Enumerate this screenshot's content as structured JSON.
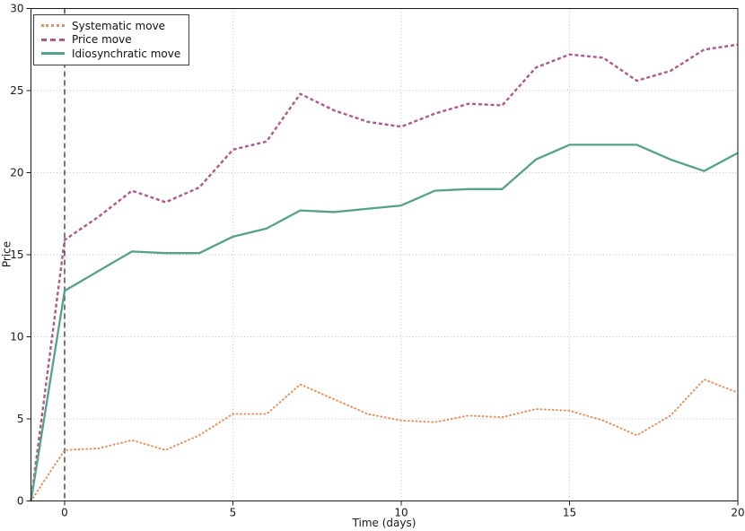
{
  "figure": {
    "background": "#ffffff"
  },
  "axes": {
    "spine_color": "#1a1a1a",
    "grid_color": "#bdbdbd"
  },
  "legend": {
    "position": "upper-left",
    "border_color": "#3c3c3c"
  },
  "chart_data": {
    "type": "line",
    "title": "",
    "xlabel": "Time (days)",
    "ylabel": "Price",
    "xlim": [
      -1,
      20
    ],
    "ylim": [
      0,
      30
    ],
    "xticks": [
      0,
      5,
      10,
      15,
      20
    ],
    "yticks": [
      0,
      5,
      10,
      15,
      20,
      25,
      30
    ],
    "grid": true,
    "legend_position": "upper left",
    "x": [
      -1,
      0,
      1,
      2,
      3,
      4,
      5,
      6,
      7,
      8,
      9,
      10,
      11,
      12,
      13,
      14,
      15,
      16,
      17,
      18,
      19,
      20
    ],
    "series": [
      {
        "name": "Systematic move",
        "color": "#e2925e",
        "line_style": "dotted",
        "values": [
          0,
          3.1,
          3.2,
          3.7,
          3.1,
          4.0,
          5.3,
          5.3,
          7.1,
          6.2,
          5.3,
          4.9,
          4.8,
          5.2,
          5.1,
          5.6,
          5.5,
          4.9,
          4.0,
          5.2,
          7.4,
          6.6
        ]
      },
      {
        "name": "Price move",
        "color": "#ac5a8b",
        "line_style": "dashed",
        "values": [
          0,
          15.9,
          17.3,
          18.9,
          18.2,
          19.1,
          21.4,
          21.9,
          24.8,
          23.8,
          23.1,
          22.8,
          23.6,
          24.2,
          24.1,
          26.4,
          27.2,
          27.0,
          25.6,
          26.2,
          27.5,
          27.8
        ]
      },
      {
        "name": "Idiosynchratic move",
        "color": "#55a28b",
        "line_style": "solid",
        "values": [
          0,
          12.8,
          14.0,
          15.2,
          15.1,
          15.1,
          16.1,
          16.6,
          17.7,
          17.6,
          17.8,
          18.0,
          18.9,
          19.0,
          19.0,
          20.8,
          21.7,
          21.7,
          21.7,
          20.8,
          20.1,
          21.2
        ]
      }
    ],
    "annotations": [
      {
        "type": "vline",
        "x": 0,
        "style": "dashed",
        "color": "#303030"
      }
    ]
  }
}
